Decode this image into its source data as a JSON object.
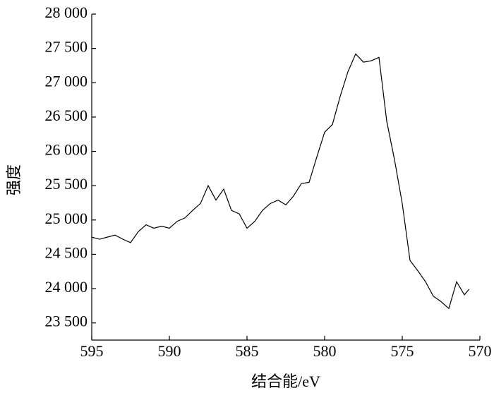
{
  "chart_data": {
    "type": "line",
    "x_label": "结合能/eV",
    "y_label": "强度",
    "x": [
      595,
      594.5,
      594,
      593.5,
      593,
      592.5,
      592,
      591.5,
      591,
      590.5,
      590,
      589.5,
      589,
      588.5,
      588,
      587.5,
      587,
      586.5,
      586,
      585.5,
      585,
      584.5,
      584,
      583.5,
      583,
      582.5,
      582,
      581.5,
      581,
      580.5,
      580,
      579.5,
      579,
      578.5,
      578,
      577.5,
      577,
      576.5,
      576,
      575.5,
      575,
      574.5,
      574,
      573.5,
      573,
      572.5,
      572,
      571.5,
      571,
      570.7
    ],
    "series": [
      {
        "color": "#000000",
        "values": [
          24750,
          24720,
          24750,
          24780,
          24720,
          24670,
          24830,
          24930,
          24880,
          24910,
          24880,
          24980,
          25030,
          25140,
          25240,
          25500,
          25290,
          25450,
          25140,
          25090,
          24880,
          24980,
          25140,
          25240,
          25290,
          25220,
          25350,
          25530,
          25550,
          25920,
          26280,
          26390,
          26800,
          27160,
          27420,
          27300,
          27320,
          27370,
          26440,
          25880,
          25240,
          24410,
          24260,
          24100,
          23890,
          23810,
          23710,
          24100,
          23910,
          23990
        ]
      }
    ],
    "xlim": [
      595,
      570
    ],
    "xticks": [
      595,
      590,
      585,
      580,
      575,
      570
    ],
    "ylim": [
      23250,
      28000
    ],
    "yticks": [
      {
        "value": 23500,
        "label": "23 500"
      },
      {
        "value": 24000,
        "label": "24 000"
      },
      {
        "value": 24500,
        "label": "24 500"
      },
      {
        "value": 25000,
        "label": "25 000"
      },
      {
        "value": 25500,
        "label": "25 500"
      },
      {
        "value": 26000,
        "label": "26 000"
      },
      {
        "value": 26500,
        "label": "26 500"
      },
      {
        "value": 27000,
        "label": "27 000"
      },
      {
        "value": 27500,
        "label": "27 500"
      },
      {
        "value": 28000,
        "label": "28 000"
      }
    ]
  }
}
